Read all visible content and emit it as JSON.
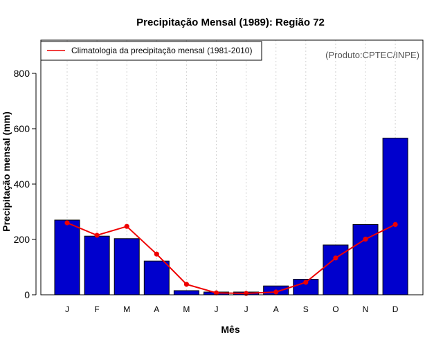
{
  "chart_data": {
    "type": "bar",
    "title": "Precipitação Mensal (1989): Região 72",
    "xlabel": "Mês",
    "ylabel": "Precipitação mensal (mm)",
    "ylim": [
      0,
      920
    ],
    "yticks": [
      0,
      200,
      400,
      600,
      800
    ],
    "categories": [
      "J",
      "F",
      "M",
      "A",
      "M",
      "J",
      "J",
      "A",
      "S",
      "O",
      "N",
      "D"
    ],
    "series": [
      {
        "name": "Precipitação mensal (1989)",
        "kind": "bar",
        "values": [
          270,
          212,
          203,
          122,
          15,
          10,
          10,
          32,
          56,
          180,
          254,
          566
        ]
      },
      {
        "name": "Climatologia da precipitação mensal (1981-2010)",
        "kind": "line",
        "values": [
          260,
          215,
          247,
          147,
          38,
          7,
          5,
          10,
          45,
          133,
          201,
          254
        ]
      }
    ],
    "legend": {
      "entries": [
        "Climatologia da precipitação mensal (1981-2010)"
      ],
      "placement": "top-left"
    },
    "annotation": "(Produto:CPTEC/INPE)",
    "grid": "vertical dotted",
    "colors": {
      "bar_fill": "#0000cd",
      "bar_stroke": "#000000",
      "line": "#ee0000",
      "grid": "#d3d3d3"
    }
  }
}
